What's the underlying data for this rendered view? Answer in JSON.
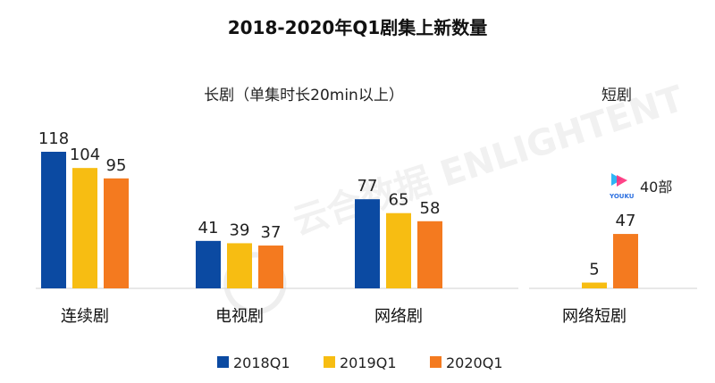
{
  "chart_data": {
    "type": "bar",
    "title": "2018-2020年Q1剧集上新数量",
    "series": [
      {
        "name": "2018Q1",
        "color": "#0b4aa2"
      },
      {
        "name": "2019Q1",
        "color": "#f7bd12"
      },
      {
        "name": "2020Q1",
        "color": "#f47a1f"
      }
    ],
    "groups": [
      {
        "label": "长剧（单集时长20min以上）",
        "categories": [
          {
            "name": "连续剧",
            "values": [
              118,
              104,
              95
            ]
          },
          {
            "name": "电视剧",
            "values": [
              41,
              39,
              37
            ]
          },
          {
            "name": "网络剧",
            "values": [
              77,
              65,
              58
            ]
          }
        ]
      },
      {
        "label": "短剧",
        "categories": [
          {
            "name": "网络短剧",
            "values": [
              null,
              5,
              47
            ]
          }
        ]
      }
    ],
    "annotation": {
      "text": "40部",
      "logo_text": "YOUKU",
      "brand": "youku-icon"
    },
    "watermark": "云合数据 ENLIGHTENT",
    "ylim": [
      0,
      125
    ],
    "legend_position": "bottom"
  }
}
